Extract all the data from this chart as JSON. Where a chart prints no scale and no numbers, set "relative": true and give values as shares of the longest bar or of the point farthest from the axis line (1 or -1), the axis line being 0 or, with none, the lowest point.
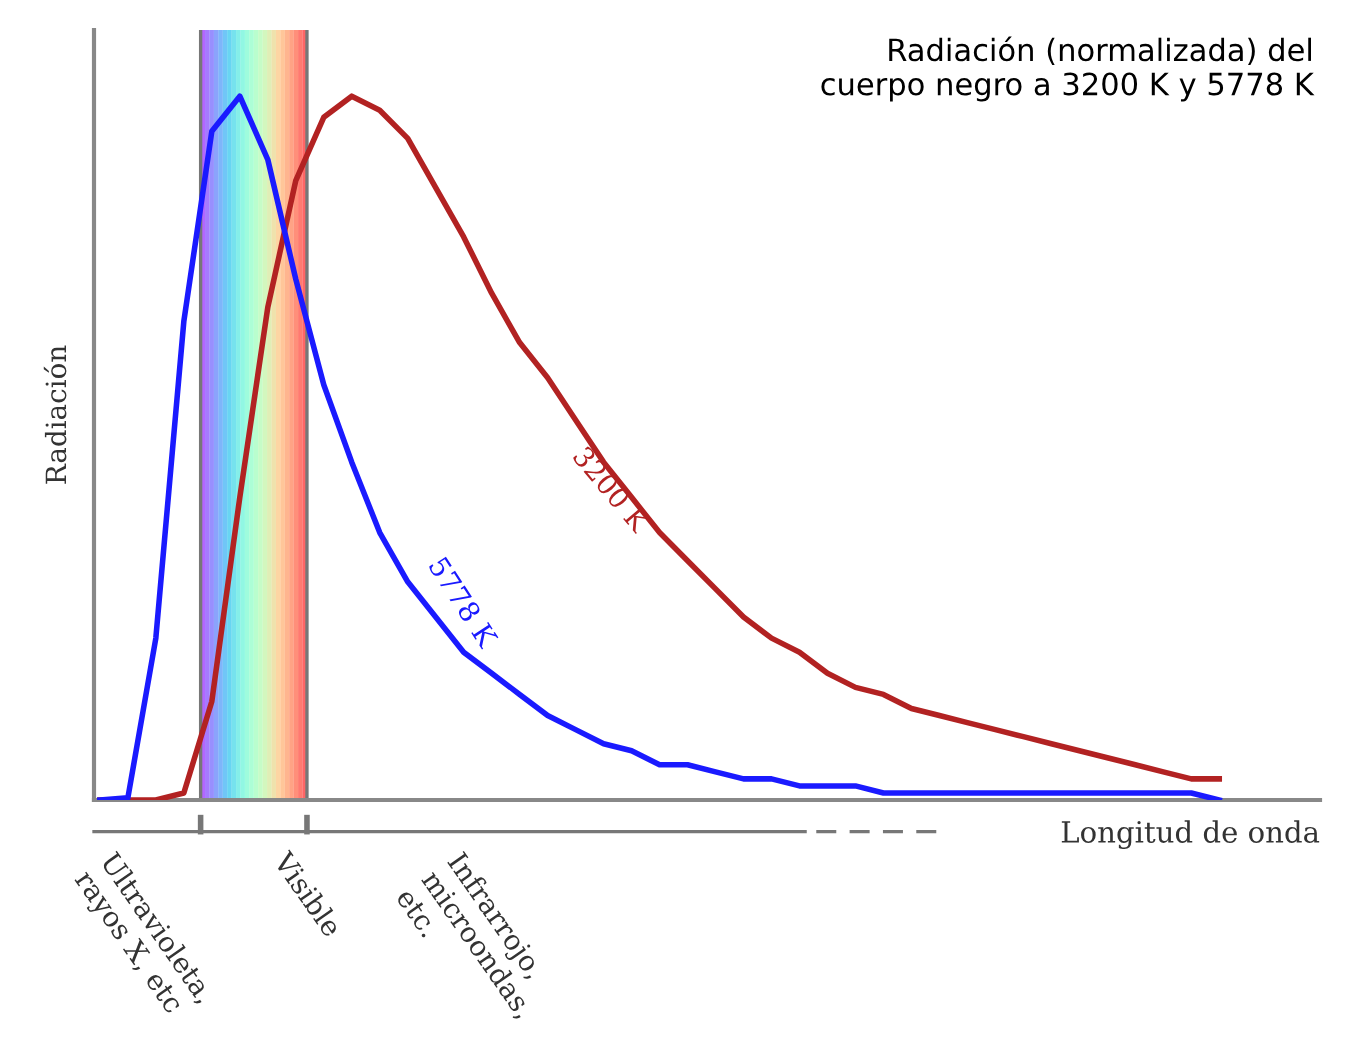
{
  "chart_data": {
    "type": "line",
    "relative": true,
    "title": "Radiación (normalizada) del\ncuerpo negro a 3200 K y 5778 K",
    "ylabel": "Radiación",
    "xlabel": "Longitud de onda",
    "categories": [
      null,
      null,
      null,
      null,
      null,
      null,
      null,
      null,
      null,
      null,
      null,
      null,
      null,
      null,
      null,
      null,
      null,
      null,
      null,
      null,
      null,
      null,
      null,
      null,
      null,
      null,
      null,
      null,
      null,
      null,
      null,
      null,
      null,
      null,
      null,
      null,
      null,
      null,
      null,
      null,
      null
    ],
    "series": [
      {
        "name": "3200 K",
        "color": "#b22222",
        "values": [
          0,
          0,
          0,
          0.01,
          0.14,
          0.43,
          0.7,
          0.88,
          0.97,
          1,
          0.98,
          0.94,
          0.87,
          0.8,
          0.72,
          0.65,
          0.6,
          0.54,
          0.48,
          0.43,
          0.38,
          0.34,
          0.3,
          0.26,
          0.23,
          0.21,
          0.18,
          0.16,
          0.15,
          0.13,
          0.12,
          0.11,
          0.1,
          0.09,
          0.08,
          0.07,
          0.06,
          0.05,
          0.04,
          0.03,
          0.03
        ]
      },
      {
        "name": "5778 K",
        "color": "#1a1aff",
        "values": [
          0,
          0.003,
          0.23,
          0.68,
          0.95,
          1,
          0.91,
          0.74,
          0.59,
          0.48,
          0.38,
          0.31,
          0.26,
          0.21,
          0.18,
          0.15,
          0.12,
          0.1,
          0.08,
          0.07,
          0.05,
          0.05,
          0.04,
          0.03,
          0.03,
          0.02,
          0.02,
          0.02,
          0.01,
          0.01,
          0.01,
          0.01,
          0.01,
          0.01,
          0.01,
          0.01,
          0.01,
          0.01,
          0.01,
          0.01,
          0
        ]
      }
    ],
    "annotations": [
      "Ultravioleta,\nrayos X, etc",
      "Visible",
      "Infrarrojo,\nmicroondas,\netc."
    ],
    "grid": false,
    "legend": false,
    "marker": "none",
    "line_style": "solid"
  }
}
